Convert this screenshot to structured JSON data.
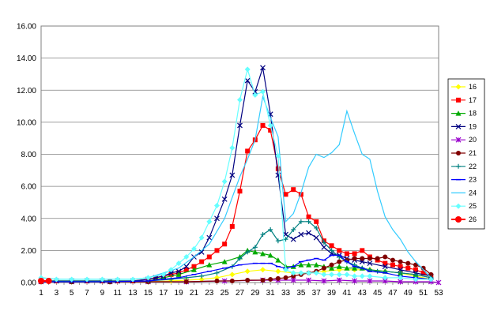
{
  "chart_data": {
    "type": "line",
    "title": "",
    "xlabel": "",
    "ylabel": "",
    "ylim": [
      0,
      16
    ],
    "yticks": [
      0,
      2,
      4,
      6,
      8,
      10,
      12,
      14,
      16
    ],
    "ytick_labels": [
      "0.00",
      "2.00",
      "4.00",
      "6.00",
      "8.00",
      "10.00",
      "12.00",
      "14.00",
      "16.00"
    ],
    "xlim": [
      1,
      53
    ],
    "xtick_labels": [
      "1",
      "3",
      "5",
      "7",
      "9",
      "11",
      "13",
      "15",
      "17",
      "19",
      "21",
      "23",
      "25",
      "27",
      "29",
      "31",
      "33",
      "35",
      "37",
      "39",
      "41",
      "43",
      "45",
      "47",
      "49",
      "51",
      "53"
    ],
    "grid": "horizontal",
    "legend_position": "right",
    "series": [
      {
        "name": "16",
        "color": "#ffff00",
        "marker": "diamond",
        "x": [
          1,
          5,
          10,
          15,
          18,
          20,
          22,
          24,
          26,
          28,
          30,
          32,
          34,
          36,
          38,
          40,
          42,
          44,
          46,
          48,
          50,
          52
        ],
        "y": [
          0.05,
          0.05,
          0.05,
          0.05,
          0.1,
          0.15,
          0.2,
          0.3,
          0.5,
          0.7,
          0.8,
          0.7,
          0.6,
          0.6,
          0.7,
          0.8,
          0.8,
          0.8,
          0.7,
          0.6,
          0.4,
          0.2
        ]
      },
      {
        "name": "17",
        "color": "#ff0000",
        "marker": "square",
        "x": [
          1,
          3,
          5,
          7,
          9,
          11,
          13,
          15,
          16,
          17,
          18,
          19,
          20,
          21,
          22,
          23,
          24,
          25,
          26,
          27,
          28,
          29,
          30,
          31,
          32,
          33,
          34,
          35,
          36,
          37,
          38,
          39,
          40,
          41,
          42,
          43,
          44,
          45,
          46,
          47,
          48,
          49,
          50,
          51,
          52
        ],
        "y": [
          0.1,
          0.1,
          0.1,
          0.1,
          0.1,
          0.1,
          0.1,
          0.2,
          0.3,
          0.4,
          0.5,
          0.6,
          0.8,
          1.0,
          1.3,
          1.6,
          2.0,
          2.4,
          3.5,
          5.7,
          8.2,
          8.9,
          9.8,
          9.5,
          7.1,
          5.5,
          5.8,
          5.5,
          4.1,
          3.8,
          2.6,
          2.3,
          2.0,
          1.8,
          1.8,
          2.0,
          1.6,
          1.4,
          1.2,
          1.1,
          1.0,
          0.9,
          0.8,
          0.6,
          0.4
        ]
      },
      {
        "name": "18",
        "color": "#00aa00",
        "marker": "triangle",
        "x": [
          1,
          5,
          10,
          15,
          17,
          19,
          21,
          23,
          25,
          27,
          28,
          29,
          30,
          31,
          32,
          33,
          34,
          35,
          36,
          37,
          38,
          39,
          40,
          41,
          42,
          43,
          44,
          46,
          48,
          50,
          52
        ],
        "y": [
          0.05,
          0.05,
          0.05,
          0.1,
          0.3,
          0.5,
          0.8,
          1.1,
          1.3,
          1.6,
          2.0,
          1.9,
          1.8,
          1.7,
          1.4,
          1.0,
          1.0,
          1.1,
          1.1,
          1.1,
          1.0,
          0.9,
          1.0,
          0.9,
          0.9,
          0.9,
          0.8,
          0.7,
          0.6,
          0.5,
          0.3
        ]
      },
      {
        "name": "19",
        "color": "#000080",
        "marker": "x",
        "x": [
          1,
          3,
          5,
          7,
          9,
          11,
          13,
          15,
          16,
          17,
          18,
          19,
          20,
          21,
          22,
          23,
          24,
          25,
          26,
          27,
          28,
          29,
          30,
          31,
          32,
          33,
          34,
          35,
          36,
          37,
          38,
          39,
          40,
          41,
          42,
          43,
          44,
          46,
          48,
          50,
          52
        ],
        "y": [
          0.1,
          0.1,
          0.1,
          0.1,
          0.1,
          0.1,
          0.1,
          0.2,
          0.3,
          0.4,
          0.6,
          0.7,
          1.0,
          1.6,
          1.9,
          2.8,
          4.0,
          5.2,
          6.7,
          9.8,
          12.6,
          11.9,
          13.4,
          10.5,
          6.7,
          3.0,
          2.7,
          3.0,
          3.1,
          2.8,
          2.2,
          1.8,
          1.7,
          1.5,
          1.4,
          1.3,
          1.2,
          1.0,
          0.8,
          0.6,
          0.4
        ]
      },
      {
        "name": "20",
        "color": "#9900cc",
        "marker": "star",
        "x": [
          1,
          5,
          10,
          15,
          20,
          25,
          30,
          32,
          34,
          36,
          38,
          40,
          42,
          44,
          46,
          48,
          50,
          52,
          53
        ],
        "y": [
          0.05,
          0.05,
          0.05,
          0.05,
          0.05,
          0.1,
          0.15,
          0.15,
          0.15,
          0.15,
          0.1,
          0.15,
          0.1,
          0.1,
          0.1,
          0.05,
          0.05,
          0.05,
          0.0
        ]
      },
      {
        "name": "21",
        "color": "#800000",
        "marker": "circle",
        "x": [
          1,
          5,
          10,
          15,
          20,
          24,
          26,
          28,
          30,
          31,
          32,
          33,
          34,
          35,
          36,
          37,
          38,
          39,
          40,
          41,
          42,
          43,
          44,
          45,
          46,
          47,
          48,
          49,
          50,
          51,
          52
        ],
        "y": [
          0.05,
          0.05,
          0.05,
          0.05,
          0.05,
          0.1,
          0.1,
          0.15,
          0.15,
          0.2,
          0.25,
          0.3,
          0.4,
          0.5,
          0.6,
          0.7,
          0.9,
          1.1,
          1.3,
          1.4,
          1.5,
          1.5,
          1.5,
          1.5,
          1.6,
          1.4,
          1.3,
          1.2,
          1.1,
          0.9,
          0.5
        ]
      },
      {
        "name": "22",
        "color": "#008080",
        "marker": "plus",
        "x": [
          1,
          5,
          10,
          15,
          18,
          20,
          22,
          24,
          26,
          27,
          28,
          29,
          30,
          31,
          32,
          33,
          34,
          35,
          36,
          37,
          38,
          39,
          40,
          41,
          42,
          43,
          44,
          45,
          46,
          48,
          50,
          52
        ],
        "y": [
          0.1,
          0.1,
          0.1,
          0.1,
          0.2,
          0.3,
          0.4,
          0.6,
          1.0,
          1.5,
          1.9,
          2.2,
          3.0,
          3.3,
          2.6,
          2.7,
          3.3,
          3.8,
          3.8,
          3.4,
          2.5,
          2.0,
          1.6,
          1.3,
          1.1,
          0.9,
          0.8,
          0.7,
          0.7,
          0.6,
          0.5,
          0.3
        ]
      },
      {
        "name": "23",
        "color": "#0000ff",
        "marker": "dash",
        "x": [
          1,
          5,
          10,
          15,
          17,
          19,
          21,
          23,
          25,
          27,
          29,
          30,
          31,
          32,
          33,
          34,
          35,
          36,
          37,
          38,
          39,
          40,
          41,
          42,
          43,
          44,
          46,
          48,
          50,
          52
        ],
        "y": [
          0.05,
          0.05,
          0.05,
          0.1,
          0.2,
          0.3,
          0.5,
          0.7,
          0.9,
          1.1,
          1.2,
          1.2,
          1.2,
          1.0,
          0.9,
          1.0,
          1.3,
          1.4,
          1.5,
          1.4,
          1.7,
          1.7,
          1.3,
          1.0,
          0.9,
          0.7,
          0.6,
          0.4,
          0.3,
          0.2
        ]
      },
      {
        "name": "24",
        "color": "#33ccff",
        "marker": "none",
        "x": [
          1,
          3,
          5,
          7,
          9,
          11,
          13,
          15,
          17,
          19,
          21,
          23,
          25,
          26,
          27,
          28,
          29,
          30,
          31,
          32,
          33,
          34,
          35,
          36,
          37,
          38,
          39,
          40,
          41,
          42,
          43,
          44,
          45,
          46,
          47,
          48,
          49,
          50,
          51,
          52
        ],
        "y": [
          0.3,
          0.2,
          0.2,
          0.2,
          0.2,
          0.2,
          0.2,
          0.3,
          0.6,
          0.9,
          1.6,
          2.4,
          4.0,
          5.3,
          6.6,
          7.7,
          8.9,
          11.6,
          10.3,
          9.1,
          3.8,
          4.3,
          5.6,
          7.2,
          8.0,
          7.8,
          8.1,
          8.6,
          10.7,
          9.3,
          8.0,
          7.7,
          5.7,
          4.1,
          3.3,
          2.7,
          1.9,
          1.3,
          0.8,
          0.3
        ]
      },
      {
        "name": "25",
        "color": "#66ffff",
        "marker": "diamond",
        "x": [
          1,
          3,
          5,
          7,
          9,
          11,
          13,
          15,
          17,
          18,
          19,
          20,
          21,
          22,
          23,
          24,
          25,
          26,
          27,
          28,
          29,
          30,
          31,
          32,
          33,
          34,
          35,
          36,
          37,
          38,
          39,
          40,
          41,
          42,
          43,
          44,
          46,
          48,
          50,
          52
        ],
        "y": [
          0.3,
          0.2,
          0.2,
          0.2,
          0.2,
          0.2,
          0.2,
          0.3,
          0.5,
          0.8,
          1.2,
          1.6,
          2.1,
          2.8,
          3.8,
          4.8,
          6.3,
          8.4,
          11.4,
          13.3,
          11.7,
          11.9,
          9.8,
          7.9,
          0.8,
          0.6,
          0.6,
          0.6,
          0.6,
          0.5,
          0.5,
          0.5,
          0.5,
          0.4,
          0.4,
          0.4,
          0.3,
          0.3,
          0.2,
          0.2
        ]
      },
      {
        "name": "26",
        "color": "#ff0000",
        "marker": "circle-big",
        "x": [
          1,
          2
        ],
        "y": [
          0.1,
          0.1
        ]
      }
    ]
  }
}
